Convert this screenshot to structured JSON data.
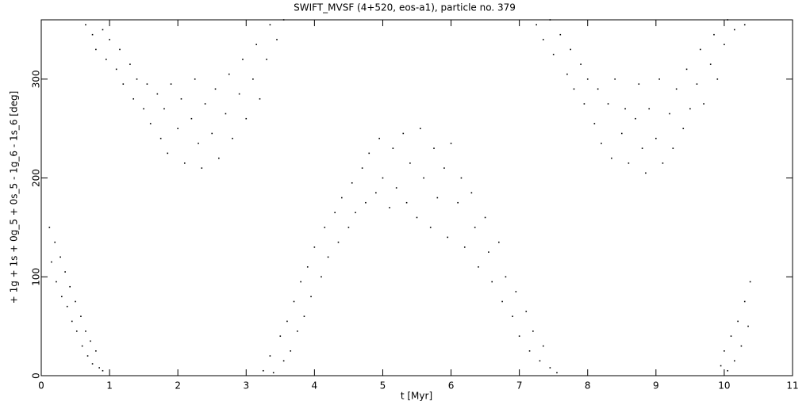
{
  "chart_data": {
    "type": "scatter",
    "title": "SWIFT_MVSF (4+520, eos-a1), particle no. 379",
    "x_label": "t [Myr]",
    "y_label": "+ 1g + 1s + 0g_5 + 0s_5 - 1g_6 - 1s_6 [deg]",
    "color": "#000000",
    "xlim": [
      0,
      11
    ],
    "xticks": [
      0,
      1,
      2,
      3,
      4,
      5,
      6,
      7,
      8,
      9,
      10,
      11
    ],
    "ylim": [
      0,
      360
    ],
    "yticks": [
      0,
      100,
      200,
      300
    ],
    "x": [
      0.12,
      0.15,
      0.2,
      0.22,
      0.28,
      0.3,
      0.35,
      0.38,
      0.42,
      0.45,
      0.5,
      0.52,
      0.58,
      0.6,
      0.65,
      0.68,
      0.72,
      0.75,
      0.8,
      0.85,
      0.9,
      0.65,
      0.75,
      0.8,
      0.9,
      0.95,
      1.0,
      1.1,
      1.15,
      1.2,
      1.3,
      1.35,
      1.4,
      1.5,
      1.55,
      1.6,
      1.7,
      1.75,
      1.8,
      1.85,
      1.9,
      2.0,
      2.05,
      2.1,
      2.2,
      2.25,
      2.3,
      2.35,
      2.4,
      2.5,
      2.55,
      2.6,
      2.7,
      2.75,
      2.8,
      2.9,
      2.95,
      3.0,
      3.1,
      3.15,
      3.2,
      3.3,
      3.35,
      3.45,
      3.55,
      3.25,
      3.35,
      3.4,
      3.5,
      3.55,
      3.6,
      3.65,
      3.7,
      3.75,
      3.8,
      3.85,
      3.9,
      3.95,
      4.0,
      4.1,
      4.15,
      4.2,
      4.3,
      4.35,
      4.4,
      4.5,
      4.55,
      4.6,
      4.7,
      4.75,
      4.8,
      4.9,
      4.95,
      5.0,
      5.1,
      5.15,
      5.2,
      5.3,
      5.35,
      5.4,
      5.5,
      5.55,
      5.6,
      5.7,
      5.75,
      5.8,
      5.9,
      5.95,
      6.0,
      6.1,
      6.15,
      6.2,
      6.3,
      6.35,
      6.4,
      6.5,
      6.55,
      6.6,
      6.7,
      6.75,
      6.8,
      6.9,
      6.95,
      7.0,
      7.1,
      7.15,
      7.2,
      7.3,
      7.35,
      7.45,
      7.55,
      7.25,
      7.35,
      7.45,
      7.5,
      7.6,
      7.7,
      7.75,
      7.8,
      7.9,
      7.95,
      8.0,
      8.1,
      8.15,
      8.2,
      8.3,
      8.35,
      8.4,
      8.5,
      8.55,
      8.6,
      8.7,
      8.75,
      8.8,
      8.85,
      8.9,
      9.0,
      9.05,
      9.1,
      9.2,
      9.25,
      9.3,
      9.4,
      9.45,
      9.5,
      9.6,
      9.65,
      9.7,
      9.8,
      9.85,
      9.9,
      10.0,
      10.05,
      10.15,
      10.3,
      9.95,
      10.0,
      10.05,
      10.1,
      10.15,
      10.2,
      10.25,
      10.3,
      10.35,
      10.38
    ],
    "y": [
      150,
      115,
      135,
      95,
      120,
      80,
      105,
      70,
      90,
      55,
      75,
      45,
      60,
      30,
      45,
      20,
      35,
      12,
      25,
      8,
      5,
      355,
      345,
      330,
      350,
      320,
      340,
      310,
      330,
      295,
      315,
      280,
      300,
      270,
      295,
      255,
      285,
      240,
      270,
      225,
      295,
      250,
      280,
      215,
      260,
      300,
      235,
      210,
      275,
      245,
      290,
      220,
      265,
      305,
      240,
      285,
      320,
      260,
      300,
      335,
      280,
      320,
      355,
      340,
      360,
      5,
      20,
      3,
      40,
      15,
      55,
      25,
      75,
      45,
      95,
      60,
      110,
      80,
      130,
      100,
      150,
      120,
      165,
      135,
      180,
      150,
      195,
      165,
      210,
      175,
      225,
      185,
      240,
      200,
      170,
      230,
      190,
      245,
      175,
      215,
      160,
      250,
      200,
      150,
      230,
      180,
      210,
      140,
      235,
      175,
      200,
      130,
      185,
      150,
      110,
      160,
      125,
      95,
      135,
      75,
      100,
      60,
      85,
      40,
      65,
      25,
      45,
      15,
      30,
      8,
      3,
      355,
      340,
      360,
      325,
      345,
      305,
      330,
      290,
      315,
      275,
      300,
      255,
      290,
      235,
      275,
      220,
      300,
      245,
      270,
      215,
      260,
      295,
      230,
      205,
      270,
      240,
      300,
      215,
      265,
      230,
      290,
      250,
      310,
      270,
      295,
      330,
      275,
      315,
      345,
      300,
      335,
      360,
      350,
      355,
      10,
      25,
      5,
      40,
      15,
      55,
      30,
      75,
      50,
      95
    ]
  }
}
